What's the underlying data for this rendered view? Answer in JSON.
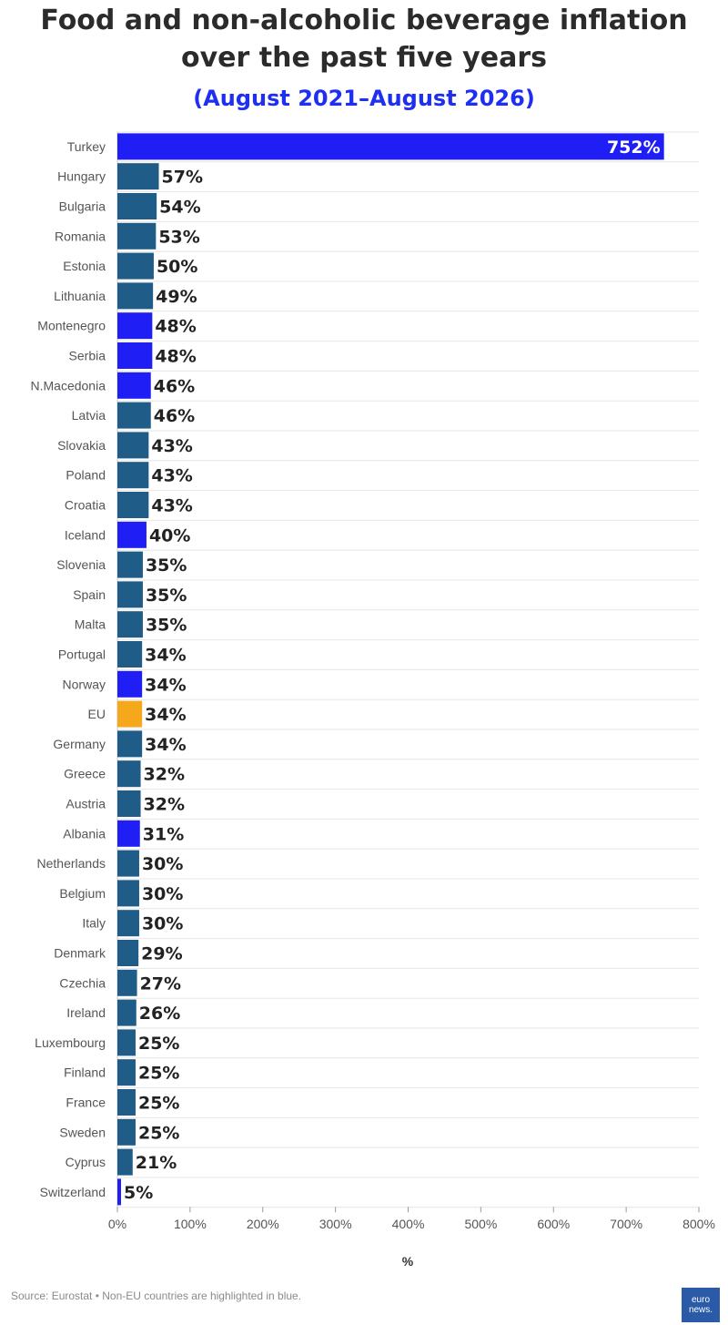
{
  "chart_data": {
    "type": "bar",
    "orientation": "horizontal",
    "title_line1": "Food and non-alcoholic beverage inflation",
    "title_line2": "over the past five years",
    "subtitle": "(August 2021–August 2026)",
    "xlabel": "%",
    "xlim": [
      0,
      800
    ],
    "x_ticks": [
      0,
      100,
      200,
      300,
      400,
      500,
      600,
      700,
      800
    ],
    "x_tick_labels": [
      "0%",
      "100%",
      "200%",
      "300%",
      "400%",
      "500%",
      "600%",
      "700%",
      "800%"
    ],
    "grid": true,
    "categories": [
      "Turkey",
      "Hungary",
      "Bulgaria",
      "Romania",
      "Estonia",
      "Lithuania",
      "Montenegro",
      "Serbia",
      "N.Macedonia",
      "Latvia",
      "Slovakia",
      "Poland",
      "Croatia",
      "Iceland",
      "Slovenia",
      "Spain",
      "Malta",
      "Portugal",
      "Norway",
      "EU",
      "Germany",
      "Greece",
      "Austria",
      "Albania",
      "Netherlands",
      "Belgium",
      "Italy",
      "Denmark",
      "Czechia",
      "Ireland",
      "Luxembourg",
      "Finland",
      "France",
      "Sweden",
      "Cyprus",
      "Switzerland"
    ],
    "values": [
      752,
      57,
      54,
      53,
      50,
      49,
      48,
      48,
      46,
      46,
      43,
      43,
      43,
      40,
      35,
      35,
      35,
      34,
      34,
      34,
      34,
      32,
      32,
      31,
      30,
      30,
      30,
      29,
      27,
      26,
      25,
      25,
      25,
      25,
      21,
      5
    ],
    "value_labels": [
      "752%",
      "57%",
      "54%",
      "53%",
      "50%",
      "49%",
      "48%",
      "48%",
      "46%",
      "46%",
      "43%",
      "43%",
      "43%",
      "40%",
      "35%",
      "35%",
      "35%",
      "34%",
      "34%",
      "34%",
      "34%",
      "32%",
      "32%",
      "31%",
      "30%",
      "30%",
      "30%",
      "29%",
      "27%",
      "26%",
      "25%",
      "25%",
      "25%",
      "25%",
      "21%",
      "5%"
    ],
    "groups": [
      "non-eu",
      "eu",
      "eu",
      "eu",
      "eu",
      "eu",
      "non-eu",
      "non-eu",
      "non-eu",
      "eu",
      "eu",
      "eu",
      "eu",
      "non-eu",
      "eu",
      "eu",
      "eu",
      "eu",
      "non-eu",
      "eu-average",
      "eu",
      "eu",
      "eu",
      "non-eu",
      "eu",
      "eu",
      "eu",
      "eu",
      "eu",
      "eu",
      "eu",
      "eu",
      "eu",
      "eu",
      "eu",
      "non-eu"
    ],
    "colors": {
      "eu": "#1f5c87",
      "non-eu": "#1e1ef5",
      "eu-average": "#f5a81c"
    }
  },
  "footer": {
    "source": "Source: Eurostat • Non-EU countries are highlighted in blue.",
    "logo_line1": "euro",
    "logo_line2": "news."
  }
}
